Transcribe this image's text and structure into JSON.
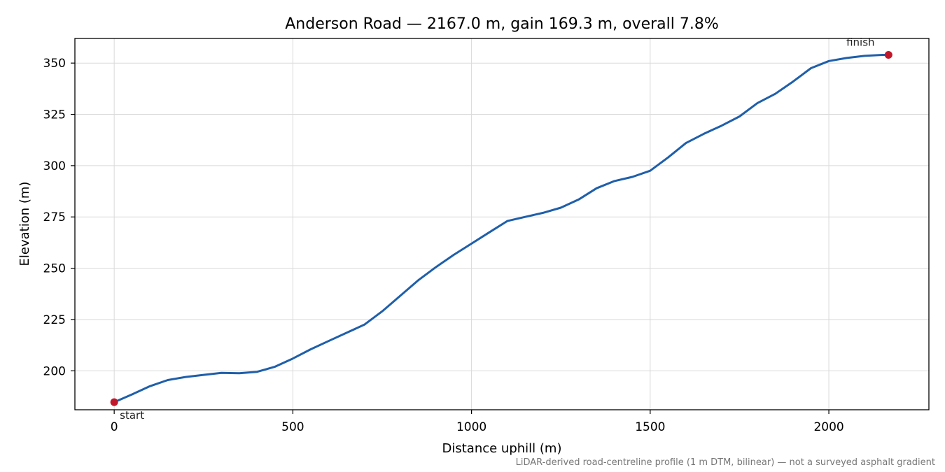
{
  "chart_data": {
    "type": "line",
    "title": "Anderson Road — 2167.0 m, gain 169.3 m, overall 7.8%",
    "xlabel": "Distance uphill (m)",
    "ylabel": "Elevation (m)",
    "xlim": [
      -110,
      2280
    ],
    "ylim": [
      181,
      362
    ],
    "xticks": [
      0,
      500,
      1000,
      1500,
      2000
    ],
    "yticks": [
      200,
      225,
      250,
      275,
      300,
      325,
      350
    ],
    "grid": true,
    "line_color": "#1f5faa",
    "marker_color": "#c0182a",
    "series": [
      {
        "x": [
          0,
          50,
          100,
          150,
          200,
          250,
          300,
          350,
          400,
          450,
          500,
          550,
          600,
          650,
          700,
          750,
          800,
          850,
          900,
          950,
          1000,
          1050,
          1100,
          1150,
          1200,
          1250,
          1300,
          1350,
          1400,
          1450,
          1500,
          1550,
          1600,
          1650,
          1700,
          1750,
          1800,
          1850,
          1900,
          1950,
          2000,
          2050,
          2100,
          2150,
          2167
        ],
        "y": [
          184.7,
          188.5,
          192.5,
          195.5,
          197.0,
          198.0,
          199.0,
          198.8,
          199.5,
          202.0,
          206.0,
          210.5,
          214.5,
          218.5,
          222.5,
          229.0,
          236.5,
          244.0,
          250.5,
          256.5,
          262.0,
          267.5,
          273.0,
          275.0,
          277.0,
          279.5,
          283.5,
          289.0,
          292.5,
          294.5,
          297.5,
          304.0,
          311.0,
          315.5,
          319.5,
          324.0,
          330.5,
          335.0,
          341.0,
          347.5,
          351.0,
          352.5,
          353.5,
          354.0,
          354.0
        ]
      }
    ],
    "annotations": [
      {
        "text": "start",
        "x": 0,
        "y": 184.7
      },
      {
        "text": "finish",
        "x": 2167,
        "y": 354.0
      }
    ],
    "footnote": "LiDAR-derived road-centreline profile (1 m DTM, bilinear) — not a surveyed asphalt gradient"
  }
}
